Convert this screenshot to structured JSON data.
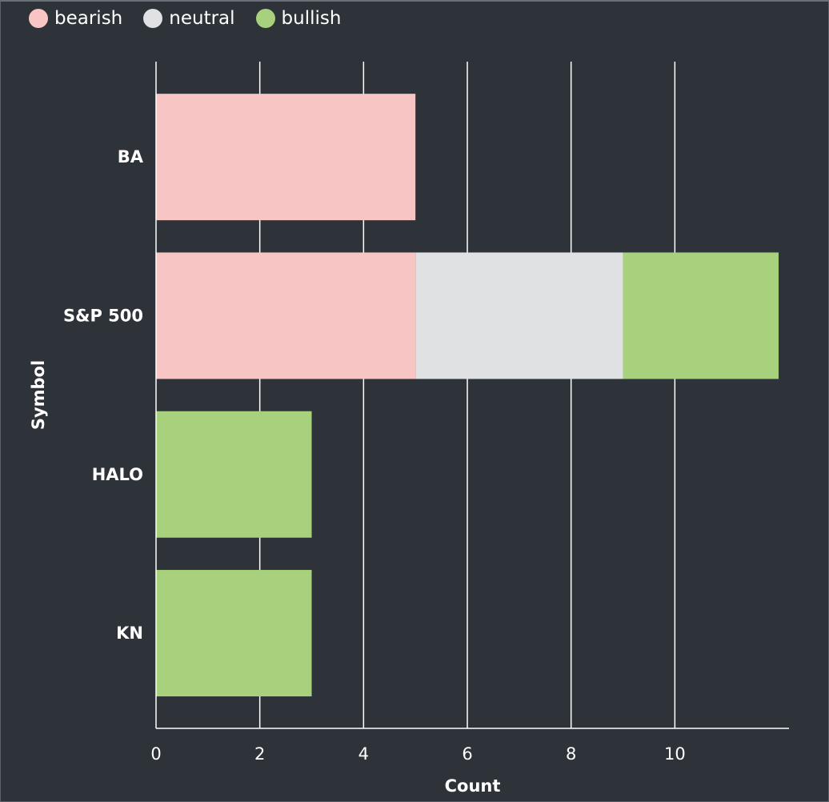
{
  "chart_data": {
    "type": "bar",
    "orientation": "horizontal",
    "stacked": true,
    "categories": [
      "BA",
      "S&P 500",
      "HALO",
      "KN"
    ],
    "series": [
      {
        "name": "bearish",
        "color": "#f7c5c4",
        "values": [
          5,
          5,
          0,
          0
        ]
      },
      {
        "name": "neutral",
        "color": "#e0e1e3",
        "values": [
          0,
          4,
          0,
          0
        ]
      },
      {
        "name": "bullish",
        "color": "#a8d17e",
        "values": [
          0,
          3,
          3,
          3
        ]
      }
    ],
    "xlabel": "Count",
    "ylabel": "Symbol",
    "xlim": [
      0,
      12.2
    ],
    "xticks": [
      0,
      2,
      4,
      6,
      8,
      10
    ],
    "grid": true,
    "legend_position": "top-left"
  },
  "theme": {
    "background": "#2e3339",
    "grid_color": "#ffffff",
    "text_color": "#ffffff"
  }
}
